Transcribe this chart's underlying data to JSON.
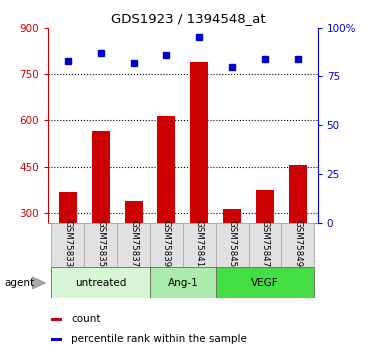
{
  "title": "GDS1923 / 1394548_at",
  "samples": [
    "GSM75833",
    "GSM75835",
    "GSM75837",
    "GSM75839",
    "GSM75841",
    "GSM75845",
    "GSM75847",
    "GSM75849"
  ],
  "counts": [
    370,
    565,
    340,
    615,
    790,
    315,
    375,
    455
  ],
  "percentiles": [
    83,
    87,
    82,
    86,
    95,
    80,
    84,
    84
  ],
  "groups": [
    {
      "label": "untreated",
      "indices": [
        0,
        1,
        2
      ],
      "color": "#d5f5d5"
    },
    {
      "label": "Ang-1",
      "indices": [
        3,
        4
      ],
      "color": "#aaeaaa"
    },
    {
      "label": "VEGF",
      "indices": [
        5,
        6,
        7
      ],
      "color": "#44dd44"
    }
  ],
  "bar_color": "#cc0000",
  "dot_color": "#0000cc",
  "ylim_left": [
    270,
    900
  ],
  "ylim_right": [
    0,
    100
  ],
  "yticks_left": [
    300,
    450,
    600,
    750,
    900
  ],
  "yticks_right": [
    0,
    25,
    50,
    75,
    100
  ],
  "grid_ticks": [
    300,
    450,
    600,
    750
  ],
  "sample_bg_color": "#e0e0e0",
  "agent_label": "agent",
  "legend_count_label": "count",
  "legend_pct_label": "percentile rank within the sample"
}
